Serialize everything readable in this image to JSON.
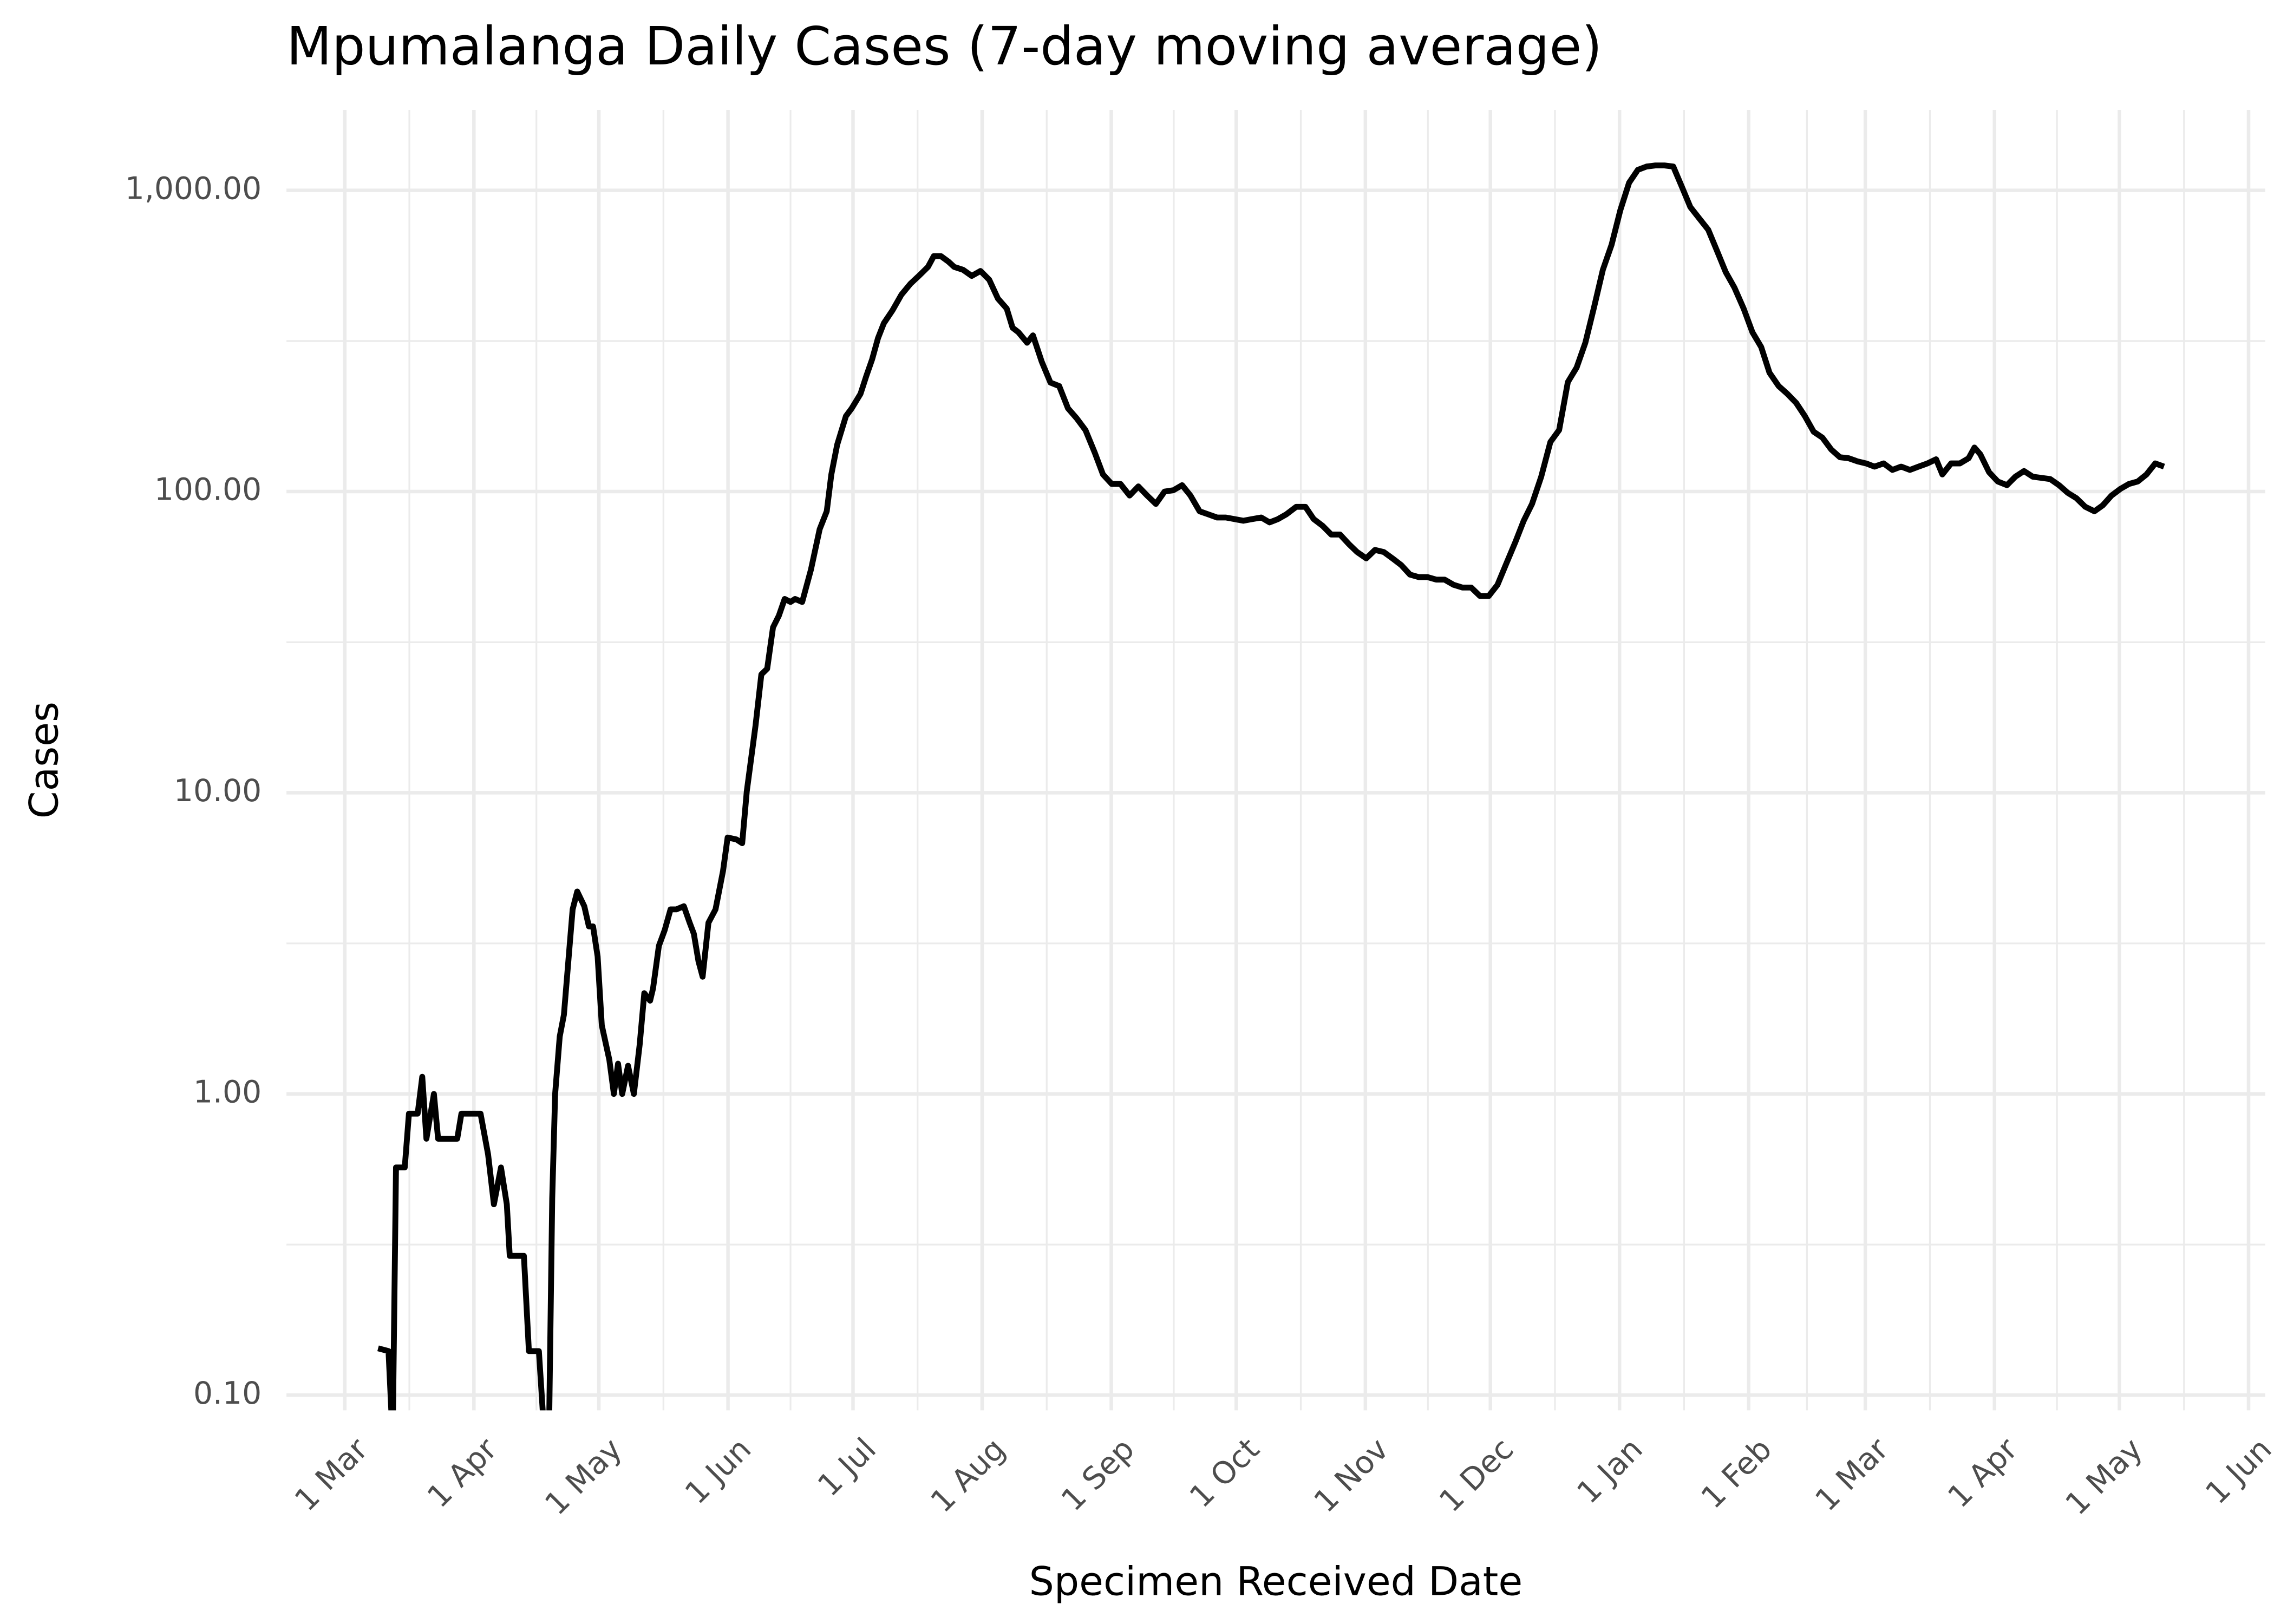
{
  "chart_data": {
    "type": "line",
    "title": "Mpumalanga Daily Cases (7-day moving average)",
    "xlabel": "Specimen Received Date",
    "ylabel": "Cases",
    "log_y": true,
    "grid": true,
    "xlim": [
      -14,
      461
    ],
    "ylim": [
      0.089,
      1850
    ],
    "xticks": [
      {
        "value": 0,
        "label": "1 Mar"
      },
      {
        "value": 31,
        "label": "1 Apr"
      },
      {
        "value": 61,
        "label": "1 May"
      },
      {
        "value": 92,
        "label": "1 Jun"
      },
      {
        "value": 122,
        "label": "1 Jul"
      },
      {
        "value": 153,
        "label": "1 Aug"
      },
      {
        "value": 184,
        "label": "1 Sep"
      },
      {
        "value": 214,
        "label": "1 Oct"
      },
      {
        "value": 245,
        "label": "1 Nov"
      },
      {
        "value": 275,
        "label": "1 Dec"
      },
      {
        "value": 306,
        "label": "1 Jan"
      },
      {
        "value": 337,
        "label": "1 Feb"
      },
      {
        "value": 365,
        "label": "1 Mar"
      },
      {
        "value": 396,
        "label": "1 Apr"
      },
      {
        "value": 426,
        "label": "1 May"
      },
      {
        "value": 457,
        "label": "1 Jun"
      }
    ],
    "xminorticks": [
      15.5,
      46,
      76.5,
      107,
      137.5,
      168.5,
      199,
      229.5,
      260,
      290.5,
      321.5,
      351,
      380.5,
      411,
      441.5
    ],
    "yticks": [
      {
        "value": 0.1,
        "label": "0.10"
      },
      {
        "value": 1,
        "label": "1.00"
      },
      {
        "value": 10,
        "label": "10.00"
      },
      {
        "value": 100,
        "label": "100.00"
      },
      {
        "value": 1000,
        "label": "1,000.00"
      }
    ],
    "yminorticks": [
      0.316,
      3.16,
      31.6,
      316
    ],
    "series": [
      {
        "color": "#000000",
        "x": [
          8,
          10.5,
          11.5,
          12.3,
          14.4,
          15.4,
          17.5,
          18.6,
          19.6,
          21.4,
          22.4,
          27,
          28,
          32.6,
          34.4,
          35.8,
          37.5,
          38.9,
          39.6,
          43,
          44.2,
          46.6,
          48,
          49,
          49.8,
          50.5,
          51.6,
          52.6,
          54.7,
          55.8,
          57.5,
          58.6,
          59.6,
          60.7,
          61.7,
          63.5,
          64.6,
          65.6,
          66.6,
          68,
          69.4,
          70.8,
          71.9,
          73.3,
          74,
          75.4,
          76.8,
          78.2,
          79.6,
          81.4,
          82.8,
          83.8,
          84.9,
          85.9,
          87.3,
          89,
          90.8,
          91.9,
          94,
          95.4,
          96.5,
          98.6,
          100,
          101.4,
          102.8,
          104.2,
          105.6,
          107,
          108.1,
          109.8,
          111.9,
          114,
          115.7,
          116.8,
          118.2,
          120.3,
          121.7,
          123.8,
          125.2,
          126.6,
          128,
          129.4,
          131.5,
          133.6,
          135.8,
          137.8,
          140,
          141.4,
          143.1,
          144.9,
          146.3,
          148.4,
          150.5,
          152.6,
          154.7,
          156.8,
          158.9,
          160.3,
          161.7,
          163.8,
          165.2,
          167.3,
          169.4,
          171.5,
          173.6,
          175.7,
          177.8,
          180,
          182,
          184.1,
          186.2,
          188.4,
          190.5,
          192.6,
          194.7,
          196.8,
          198.9,
          201,
          203,
          205.2,
          207.3,
          209.4,
          211.5,
          213.6,
          215.7,
          217.8,
          220,
          222,
          224,
          226,
          228.4,
          230.6,
          232.6,
          234.7,
          236.8,
          238.9,
          241,
          243,
          245.2,
          247.3,
          249.4,
          251.5,
          253.6,
          255.7,
          257.8,
          259.9,
          262,
          264,
          266.2,
          268.3,
          270.4,
          272.5,
          274.6,
          276.7,
          278.9,
          281,
          283,
          285,
          287.2,
          289.4,
          291.5,
          293.6,
          295.7,
          297.8,
          299.9,
          302,
          304.1,
          306.2,
          308.3,
          310.4,
          312.5,
          314.6,
          316.8,
          318.9,
          321,
          323,
          325.2,
          327.3,
          329.4,
          331.5,
          333.6,
          335.8,
          337.9,
          340,
          342,
          344.2,
          346.3,
          348.4,
          350.5,
          352.6,
          354.7,
          356.8,
          358.9,
          361,
          363.1,
          365.2,
          367.2,
          369.4,
          371.5,
          373.6,
          375.7,
          377.8,
          379.9,
          382,
          383.5,
          385.6,
          387.7,
          389.8,
          391.2,
          392.6,
          394.7,
          396.8,
          399,
          401,
          403.1,
          405.2,
          407.3,
          409.4,
          411.5,
          413.6,
          415.7,
          417.8,
          420,
          422,
          424.1,
          426.2,
          428.3,
          430.4,
          432.5,
          434.6,
          436.7
        ],
        "values": [
          0.143,
          0.14,
          0.071,
          0.57,
          0.57,
          0.86,
          0.86,
          1.14,
          0.71,
          1.0,
          0.71,
          0.71,
          0.86,
          0.86,
          0.63,
          0.43,
          0.57,
          0.43,
          0.29,
          0.29,
          0.14,
          0.14,
          0.07,
          0.07,
          0.45,
          1.0,
          1.55,
          1.83,
          4.1,
          4.7,
          4.2,
          3.6,
          3.6,
          2.86,
          1.69,
          1.3,
          1.0,
          1.26,
          1.0,
          1.24,
          1.0,
          1.46,
          2.16,
          2.04,
          2.24,
          3.1,
          3.5,
          4.1,
          4.1,
          4.2,
          3.7,
          3.4,
          2.76,
          2.45,
          3.7,
          4.1,
          5.5,
          7.1,
          7.0,
          6.8,
          10.1,
          16.7,
          24.7,
          25.8,
          35.4,
          38.7,
          44,
          43,
          44,
          43,
          55,
          75,
          86,
          114,
          143,
          178,
          189,
          211,
          242,
          275,
          323,
          362,
          400,
          450,
          490,
          520,
          557,
          605,
          605,
          580,
          557,
          545,
          520,
          540,
          505,
          437,
          405,
          350,
          338,
          312,
          330,
          270,
          230,
          224,
          189,
          175,
          160,
          135,
          114,
          106,
          106,
          97,
          104,
          97,
          91,
          100,
          101,
          105,
          97,
          86,
          84,
          82,
          82,
          81,
          80,
          81,
          82,
          79,
          81,
          84,
          89,
          89,
          81,
          77,
          72,
          72,
          67,
          63,
          60,
          64,
          63,
          60,
          57,
          53,
          52,
          52,
          51,
          51,
          49,
          48,
          48,
          45,
          45,
          49,
          58,
          68,
          80,
          91,
          112,
          146,
          160,
          231,
          258,
          312,
          410,
          545,
          660,
          860,
          1060,
          1170,
          1200,
          1210,
          1210,
          1200,
          1025,
          880,
          805,
          740,
          630,
          535,
          475,
          405,
          338,
          302,
          248,
          224,
          211,
          197,
          178,
          158,
          151,
          138,
          130,
          129,
          126,
          124,
          121,
          124,
          118,
          121,
          118,
          121,
          124,
          128,
          114,
          124,
          124,
          129,
          140,
          133,
          116,
          108,
          105,
          112,
          117,
          112,
          111,
          110,
          105,
          99,
          95,
          89,
          86,
          90,
          97,
          102,
          106,
          108,
          114,
          124,
          121
        ]
      }
    ]
  }
}
